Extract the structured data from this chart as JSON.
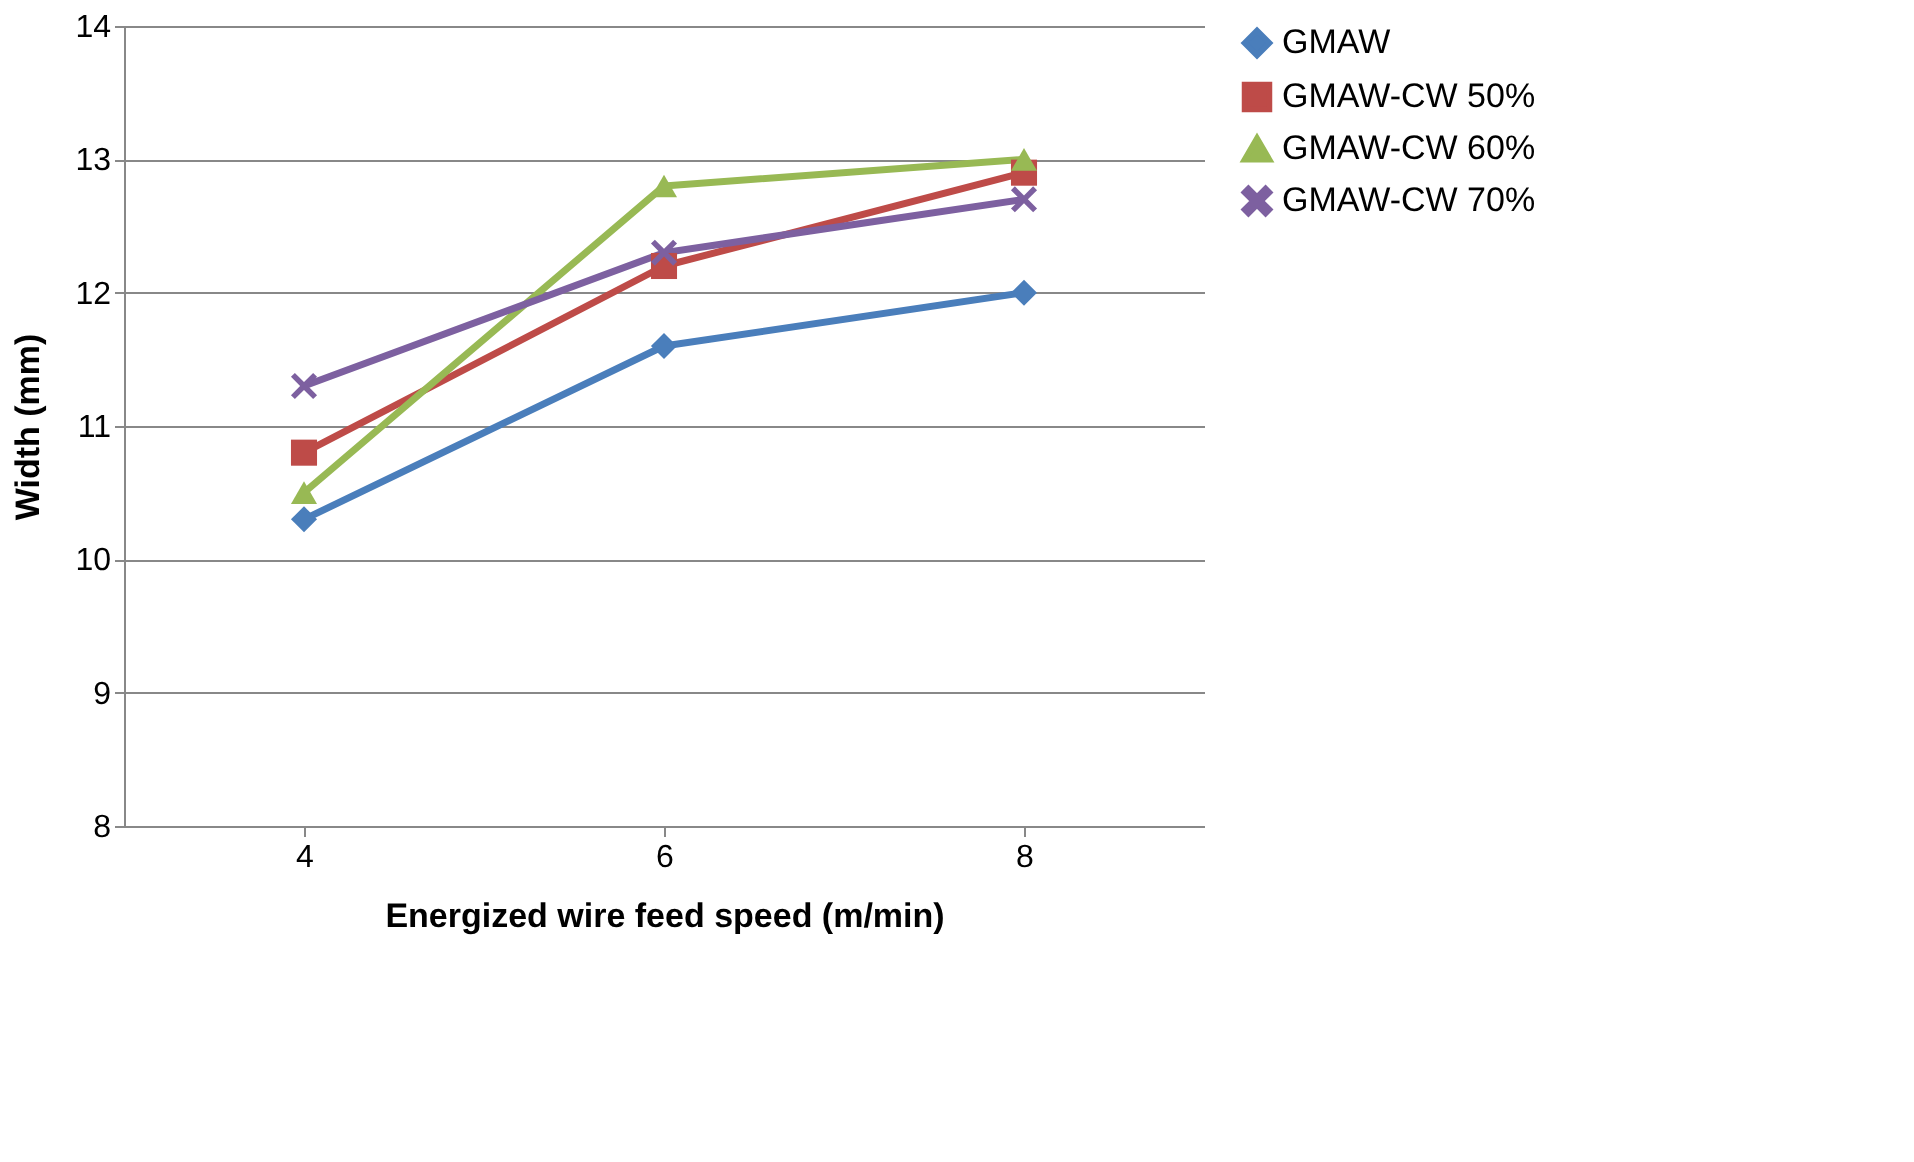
{
  "chart_data": {
    "type": "line",
    "xlabel": "Energized wire feed speed (m/min)",
    "ylabel": "Width (mm)",
    "categories": [
      "4",
      "6",
      "8"
    ],
    "series": [
      {
        "name": "GMAW",
        "color": "#4a7ebb",
        "values": [
          10.3,
          11.6,
          12.0
        ],
        "marker": "diamond"
      },
      {
        "name": "GMAW-CW 50%",
        "color": "#be4b48",
        "values": [
          10.8,
          12.2,
          12.9
        ],
        "marker": "square"
      },
      {
        "name": "GMAW-CW 60%",
        "color": "#98b954",
        "values": [
          10.5,
          12.8,
          13.0
        ],
        "marker": "triangle"
      },
      {
        "name": "GMAW-CW 70%",
        "color": "#7d60a0",
        "values": [
          11.3,
          12.3,
          12.7
        ],
        "marker": "cross"
      }
    ],
    "ylim": [
      8,
      14
    ],
    "yticks": [
      8,
      9,
      10,
      11,
      12,
      13,
      14
    ],
    "grid": "y",
    "legend": "right",
    "line_style": "solid"
  }
}
